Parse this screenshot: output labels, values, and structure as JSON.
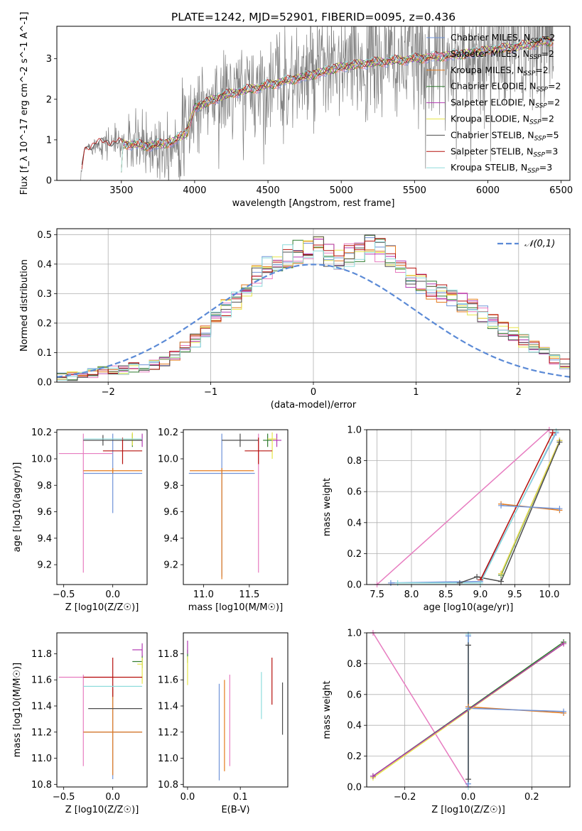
{
  "colors": [
    "#6f93d8",
    "#e77cc0",
    "#e47a1d",
    "#2f7b2f",
    "#b23ab2",
    "#e7e64a",
    "#4d4d4d",
    "#b6100d",
    "#8fdcdc"
  ],
  "chart_data": [
    {
      "id": "spectrum",
      "type": "line",
      "title": "PLATE=1242, MJD=52901, FIBERID=0095, z=0.436",
      "xlabel": "wavelength [Angstrom, rest frame]",
      "ylabel": "Flux [f_λ 10^-17 erg cm^-2 s^-1 A^-1]",
      "xlim": [
        3060,
        6560
      ],
      "ylim": [
        0,
        3.8
      ],
      "xticks": [
        3500,
        4000,
        4500,
        5000,
        5500,
        6000,
        6500
      ],
      "yticks": [
        0,
        1,
        2,
        3
      ],
      "legend_position": "upper-right",
      "legend": [
        "Chabrier MILES, N_SSP=2",
        "Salpeter MILES, N_SSP=2",
        "Kroupa MILES, N_SSP=2",
        "Chabrier ELODIE, N_SSP=2",
        "Salpeter ELODIE, N_SSP=2",
        "Kroupa ELODIE, N_SSP=2",
        "Chabrier STELIB, N_SSP=5",
        "Salpeter STELIB, N_SSP=3",
        "Kroupa STELIB, N_SSP=3"
      ],
      "model_trend": {
        "x": [
          3220,
          3250,
          3400,
          3520,
          3700,
          3850,
          3950,
          4000,
          4200,
          4500,
          4800,
          5000,
          5200,
          5500,
          5800,
          6000,
          6200,
          6450
        ],
        "y": [
          0,
          0.8,
          0.95,
          0.9,
          0.85,
          0.95,
          1.2,
          1.8,
          2.1,
          2.35,
          2.6,
          2.8,
          2.9,
          3.0,
          3.1,
          3.2,
          3.3,
          3.45
        ]
      },
      "data_noise_envelope": {
        "x": [
          3220,
          3500,
          3700,
          4000,
          4500,
          5000,
          5500,
          6000,
          6450
        ],
        "sigma": [
          0.05,
          0.6,
          1.0,
          1.2,
          1.4,
          1.6,
          1.8,
          1.9,
          2.0
        ]
      }
    },
    {
      "id": "residuals",
      "type": "histogram",
      "xlabel": "(data-model)/error",
      "ylabel": "Normed distribution",
      "xlim": [
        -2.5,
        2.5
      ],
      "ylim": [
        0,
        0.52
      ],
      "xticks": [
        -2,
        -1,
        0,
        1,
        2
      ],
      "yticks": [
        0.0,
        0.1,
        0.2,
        0.3,
        0.4,
        0.5
      ],
      "grid": true,
      "legend_position": "upper-right",
      "legend": [
        "𝒩(0,1)"
      ],
      "bin_width": 0.1,
      "bin_start": -2.5,
      "base_hist": [
        0.02,
        0.02,
        0.03,
        0.03,
        0.04,
        0.04,
        0.04,
        0.05,
        0.05,
        0.06,
        0.07,
        0.09,
        0.12,
        0.14,
        0.17,
        0.21,
        0.25,
        0.28,
        0.31,
        0.36,
        0.39,
        0.41,
        0.43,
        0.44,
        0.45,
        0.45,
        0.43,
        0.42,
        0.43,
        0.44,
        0.46,
        0.45,
        0.43,
        0.4,
        0.36,
        0.33,
        0.31,
        0.3,
        0.29,
        0.27,
        0.25,
        0.23,
        0.21,
        0.18,
        0.16,
        0.14,
        0.12,
        0.1,
        0.08,
        0.06,
        0.05,
        0.04,
        0.03,
        0.03,
        0.02
      ]
    },
    {
      "id": "age-vs-Z",
      "type": "errorbar",
      "xlabel": "Z [log10(Z/Z☉)]",
      "ylabel": "age  [log10(age/yr)]",
      "xlim": [
        -0.57,
        0.35
      ],
      "ylim": [
        9.05,
        10.22
      ],
      "xticks": [
        -0.5,
        0.0
      ],
      "yticks": [
        9.2,
        9.4,
        9.6,
        9.8,
        10.0,
        10.2
      ],
      "points": [
        {
          "c": 0,
          "x": 0.0,
          "y": 9.89,
          "xerr": [
            0.3,
            0.3
          ],
          "yerr": [
            0.3,
            0.3
          ]
        },
        {
          "c": 1,
          "x": -0.3,
          "y": 10.04,
          "xerr": [
            0.25,
            0.3
          ],
          "yerr": [
            0.9,
            0.15
          ]
        },
        {
          "c": 2,
          "x": 0.0,
          "y": 9.91,
          "xerr": [
            0.3,
            0.3
          ],
          "yerr": [
            0.02,
            0.02
          ]
        },
        {
          "c": 3,
          "x": 0.2,
          "y": 10.14,
          "xerr": [
            0.1,
            0.1
          ],
          "yerr": [
            0.05,
            0.05
          ]
        },
        {
          "c": 4,
          "x": 0.3,
          "y": 10.14,
          "xerr": [
            0.05,
            0.0
          ],
          "yerr": [
            0.05,
            0.05
          ]
        },
        {
          "c": 5,
          "x": 0.2,
          "y": 10.15,
          "xerr": [
            0.1,
            0.1
          ],
          "yerr": [
            0.05,
            0.05
          ]
        },
        {
          "c": 6,
          "x": -0.1,
          "y": 10.14,
          "xerr": [
            0.2,
            0.4
          ],
          "yerr": [
            0.04,
            0.04
          ]
        },
        {
          "c": 7,
          "x": 0.1,
          "y": 10.06,
          "xerr": [
            0.2,
            0.2
          ],
          "yerr": [
            0.1,
            0.1
          ]
        },
        {
          "c": 8,
          "x": 0.0,
          "y": 10.15,
          "xerr": [
            0.3,
            0.3
          ],
          "yerr": [
            0.0,
            0.0
          ]
        }
      ]
    },
    {
      "id": "age-vs-mass",
      "type": "errorbar",
      "xlabel": "mass [log10(M/M☉)]",
      "ylabel": "",
      "xlim": [
        10.78,
        11.92
      ],
      "ylim": [
        9.05,
        10.22
      ],
      "xticks": [
        11.0,
        11.5
      ],
      "yticks": [
        9.2,
        9.4,
        9.6,
        9.8,
        10.0,
        10.2
      ],
      "points": [
        {
          "c": 0,
          "x": 11.2,
          "y": 9.89,
          "xerr": [
            0.36,
            0.36
          ],
          "yerr": [
            0.78,
            0.3
          ]
        },
        {
          "c": 1,
          "x": 11.6,
          "y": 10.04,
          "xerr": [
            0.0,
            0.0
          ],
          "yerr": [
            0.9,
            0.15
          ]
        },
        {
          "c": 2,
          "x": 11.2,
          "y": 9.91,
          "xerr": [
            0.35,
            0.35
          ],
          "yerr": [
            0.82,
            0.02
          ]
        },
        {
          "c": 3,
          "x": 11.7,
          "y": 10.14,
          "xerr": [
            0.05,
            0.05
          ],
          "yerr": [
            0.05,
            0.05
          ]
        },
        {
          "c": 4,
          "x": 11.8,
          "y": 10.14,
          "xerr": [
            0.05,
            0.05
          ],
          "yerr": [
            0.05,
            0.05
          ]
        },
        {
          "c": 5,
          "x": 11.75,
          "y": 10.15,
          "xerr": [
            0.05,
            0.05
          ],
          "yerr": [
            0.15,
            0.05
          ]
        },
        {
          "c": 6,
          "x": 11.4,
          "y": 10.14,
          "xerr": [
            0.2,
            0.2
          ],
          "yerr": [
            0.05,
            0.05
          ]
        },
        {
          "c": 7,
          "x": 11.6,
          "y": 10.06,
          "xerr": [
            0.15,
            0.15
          ],
          "yerr": [
            0.1,
            0.1
          ]
        },
        {
          "c": 8,
          "x": 11.55,
          "y": 10.15,
          "xerr": [
            0.0,
            0.0
          ],
          "yerr": [
            0.0,
            0.0
          ]
        }
      ]
    },
    {
      "id": "weight-vs-age",
      "type": "line",
      "xlabel": "age  [log10(age/yr)]",
      "ylabel": "mass weight",
      "xlim": [
        7.35,
        10.3
      ],
      "ylim": [
        0,
        1.0
      ],
      "xticks": [
        7.5,
        8.0,
        8.5,
        9.0,
        9.5,
        10.0
      ],
      "yticks": [
        0.0,
        0.2,
        0.4,
        0.6,
        0.8,
        1.0
      ],
      "grid": true,
      "series": [
        {
          "c": 0,
          "x": [
            7.7,
            9.0,
            10.1
          ],
          "y": [
            0.01,
            0.02,
            0.98
          ]
        },
        {
          "c": 1,
          "x": [
            7.5,
            10.0
          ],
          "y": [
            0.0,
            1.0
          ]
        },
        {
          "c": 2,
          "x": [
            9.3,
            10.15
          ],
          "y": [
            0.52,
            0.48
          ]
        },
        {
          "c": 3,
          "x": [
            9.3,
            10.15
          ],
          "y": [
            0.06,
            0.93
          ]
        },
        {
          "c": 4,
          "x": [
            9.3,
            10.15
          ],
          "y": [
            0.07,
            0.93
          ]
        },
        {
          "c": 5,
          "x": [
            9.3,
            10.15
          ],
          "y": [
            0.07,
            0.93
          ]
        },
        {
          "c": 6,
          "x": [
            8.7,
            8.95,
            9.3,
            10.15
          ],
          "y": [
            0.01,
            0.05,
            0.02,
            0.92
          ]
        },
        {
          "c": 7,
          "x": [
            9.0,
            10.05
          ],
          "y": [
            0.03,
            0.98
          ]
        },
        {
          "c": 8,
          "x": [
            7.8,
            9.0,
            10.1
          ],
          "y": [
            0.01,
            0.01,
            0.99
          ]
        },
        {
          "c": 0,
          "x": [
            9.3,
            10.15
          ],
          "y": [
            0.51,
            0.49
          ]
        }
      ]
    },
    {
      "id": "mass-vs-Z",
      "type": "errorbar",
      "xlabel": "Z [log10(Z/Z☉)]",
      "ylabel": "mass [log10(M/M☉)]",
      "xlim": [
        -0.57,
        0.35
      ],
      "ylim": [
        10.78,
        11.96
      ],
      "xticks": [
        -0.5,
        0.0
      ],
      "yticks": [
        10.8,
        11.0,
        11.2,
        11.4,
        11.6,
        11.8
      ],
      "points": [
        {
          "c": 0,
          "x": 0.0,
          "y": 11.2,
          "xerr": [
            0.3,
            0.3
          ],
          "yerr": [
            0.36,
            0.36
          ]
        },
        {
          "c": 1,
          "x": -0.3,
          "y": 11.62,
          "xerr": [
            0.25,
            0.3
          ],
          "yerr": [
            0.68,
            0.02
          ]
        },
        {
          "c": 2,
          "x": 0.0,
          "y": 11.2,
          "xerr": [
            0.3,
            0.3
          ],
          "yerr": [
            0.33,
            0.33
          ]
        },
        {
          "c": 3,
          "x": 0.3,
          "y": 11.74,
          "xerr": [
            0.1,
            0.0
          ],
          "yerr": [
            0.05,
            0.05
          ]
        },
        {
          "c": 4,
          "x": 0.3,
          "y": 11.83,
          "xerr": [
            0.1,
            0.0
          ],
          "yerr": [
            0.05,
            0.05
          ]
        },
        {
          "c": 5,
          "x": 0.3,
          "y": 11.72,
          "xerr": [
            0.05,
            0.0
          ],
          "yerr": [
            0.15,
            0.05
          ]
        },
        {
          "c": 6,
          "x": 0.0,
          "y": 11.38,
          "xerr": [
            0.25,
            0.3
          ],
          "yerr": [
            0.0,
            0.0
          ]
        },
        {
          "c": 7,
          "x": 0.0,
          "y": 11.62,
          "xerr": [
            0.3,
            0.3
          ],
          "yerr": [
            0.15,
            0.15
          ]
        },
        {
          "c": 8,
          "x": 0.0,
          "y": 11.55,
          "xerr": [
            0.3,
            0.3
          ],
          "yerr": [
            0.0,
            0.0
          ]
        }
      ]
    },
    {
      "id": "mass-vs-ebv",
      "type": "errorbar",
      "xlabel": "E(B-V)",
      "ylabel": "",
      "xlim": [
        -0.008,
        0.19
      ],
      "ylim": [
        10.78,
        11.96
      ],
      "xticks": [
        0.0,
        0.1
      ],
      "yticks": [
        10.8,
        11.0,
        11.2,
        11.4,
        11.6,
        11.8
      ],
      "points": [
        {
          "c": 0,
          "x": 0.06,
          "y": 11.2,
          "xerr": [
            0,
            0
          ],
          "yerr": [
            0.37,
            0.37
          ]
        },
        {
          "c": 1,
          "x": 0.08,
          "y": 11.29,
          "xerr": [
            0,
            0
          ],
          "yerr": [
            0.35,
            0.35
          ]
        },
        {
          "c": 2,
          "x": 0.07,
          "y": 11.25,
          "xerr": [
            0,
            0
          ],
          "yerr": [
            0.35,
            0.35
          ]
        },
        {
          "c": 3,
          "x": 0.0,
          "y": 11.78,
          "xerr": [
            0,
            0
          ],
          "yerr": [
            0.05,
            0.05
          ]
        },
        {
          "c": 4,
          "x": 0.0,
          "y": 11.85,
          "xerr": [
            0,
            0
          ],
          "yerr": [
            0.05,
            0.05
          ]
        },
        {
          "c": 5,
          "x": 0.0,
          "y": 11.68,
          "xerr": [
            0,
            0
          ],
          "yerr": [
            0.12,
            0.1
          ]
        },
        {
          "c": 6,
          "x": 0.18,
          "y": 11.38,
          "xerr": [
            0,
            0
          ],
          "yerr": [
            0.2,
            0.2
          ]
        },
        {
          "c": 7,
          "x": 0.16,
          "y": 11.59,
          "xerr": [
            0,
            0
          ],
          "yerr": [
            0.18,
            0.18
          ]
        },
        {
          "c": 8,
          "x": 0.14,
          "y": 11.48,
          "xerr": [
            0,
            0
          ],
          "yerr": [
            0.18,
            0.18
          ]
        }
      ]
    },
    {
      "id": "weight-vs-Z",
      "type": "line",
      "xlabel": "Z [log10(Z/Z☉)]",
      "ylabel": "mass weight",
      "xlim": [
        -0.32,
        0.32
      ],
      "ylim": [
        0,
        1.0
      ],
      "xticks": [
        -0.2,
        0.0,
        0.2
      ],
      "yticks": [
        0.0,
        0.2,
        0.4,
        0.6,
        0.8,
        1.0
      ],
      "grid": true,
      "series": [
        {
          "c": 1,
          "x": [
            -0.3,
            0.0
          ],
          "y": [
            1.0,
            0.0
          ]
        },
        {
          "c": 2,
          "x": [
            0.0,
            0.3
          ],
          "y": [
            0.52,
            0.48
          ]
        },
        {
          "c": 0,
          "x": [
            0.0,
            0.3
          ],
          "y": [
            0.51,
            0.49
          ]
        },
        {
          "c": 3,
          "x": [
            -0.3,
            0.3
          ],
          "y": [
            0.07,
            0.94
          ]
        },
        {
          "c": 5,
          "x": [
            -0.3,
            0.3
          ],
          "y": [
            0.06,
            0.93
          ]
        },
        {
          "c": 4,
          "x": [
            -0.3,
            0.3
          ],
          "y": [
            0.07,
            0.93
          ]
        },
        {
          "c": 8,
          "x": [
            0.0,
            0.0
          ],
          "y": [
            0.0,
            0.99
          ]
        },
        {
          "c": 0,
          "x": [
            0.0,
            0.0
          ],
          "y": [
            0.02,
            0.98
          ]
        },
        {
          "c": 6,
          "x": [
            0.0,
            0.0
          ],
          "y": [
            0.05,
            0.92
          ]
        }
      ]
    }
  ]
}
